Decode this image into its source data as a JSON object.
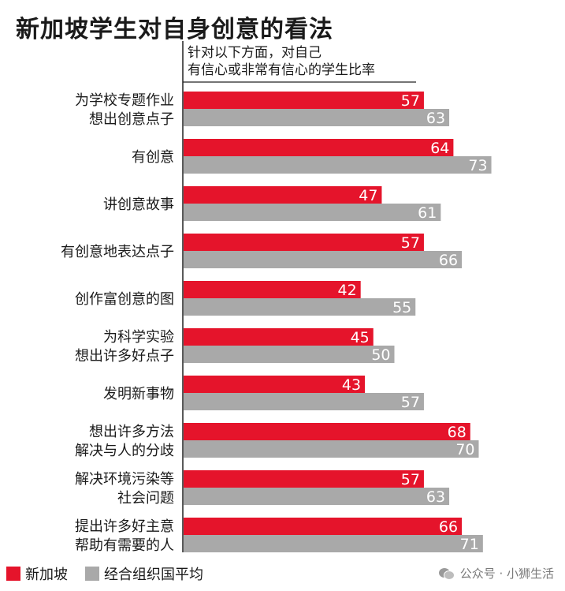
{
  "chart_data": {
    "type": "bar",
    "orientation": "horizontal",
    "title": "新加坡学生对自身创意的看法",
    "subtitle": [
      "针对以下方面，对自己",
      "有信心或非常有信心的学生比率"
    ],
    "categories": [
      [
        "为学校专题作业",
        "想出创意点子"
      ],
      [
        "有创意"
      ],
      [
        "讲创意故事"
      ],
      [
        "有创意地表达点子"
      ],
      [
        "创作富创意的图"
      ],
      [
        "为科学实验",
        "想出许多好点子"
      ],
      [
        "发明新事物"
      ],
      [
        "想出许多方法",
        "解决与人的分歧"
      ],
      [
        "解决环境污染等",
        "社会问题"
      ],
      [
        "提出许多好主意",
        "帮助有需要的人"
      ]
    ],
    "series": [
      {
        "name": "新加坡",
        "color": "#e5142b",
        "values": [
          57,
          64,
          47,
          57,
          42,
          45,
          43,
          68,
          57,
          66
        ]
      },
      {
        "name": "经合组织国平均",
        "color": "#a9a9a9",
        "values": [
          63,
          73,
          61,
          66,
          55,
          50,
          57,
          70,
          63,
          71
        ]
      }
    ],
    "xlim": [
      0,
      100
    ],
    "legend_position": "bottom-left",
    "grid": false
  },
  "watermark": {
    "icon": "wechat-icon",
    "text": "公众号 · 小狮生活"
  }
}
